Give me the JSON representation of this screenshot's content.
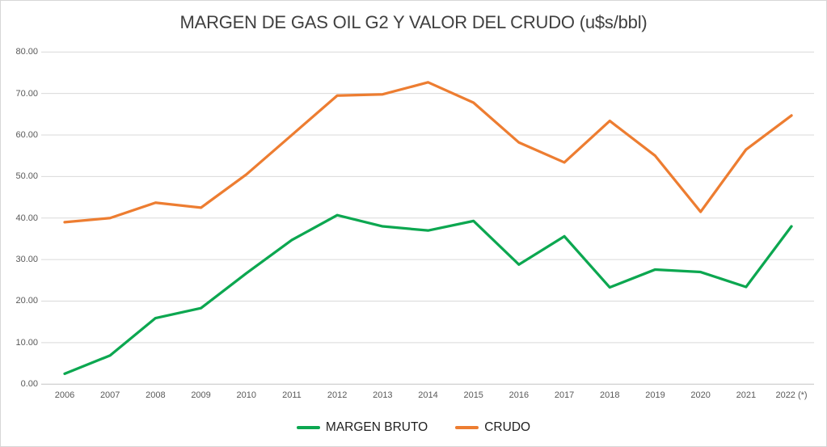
{
  "chart_data": {
    "type": "line",
    "title": "MARGEN DE GAS OIL G2 Y VALOR DEL CRUDO (u$s/bbl)",
    "categories": [
      "2006",
      "2007",
      "2008",
      "2009",
      "2010",
      "2011",
      "2012",
      "2013",
      "2014",
      "2015",
      "2016",
      "2017",
      "2018",
      "2019",
      "2020",
      "2021",
      "2022 (*)"
    ],
    "series": [
      {
        "name": "MARGEN BRUTO",
        "color": "#0ca750",
        "values": [
          2.5,
          6.9,
          15.9,
          18.3,
          26.7,
          34.7,
          40.7,
          38.0,
          37.0,
          39.3,
          28.8,
          35.6,
          23.3,
          27.6,
          27.0,
          23.4,
          38.0
        ]
      },
      {
        "name": "CRUDO",
        "color": "#ed7d31",
        "values": [
          39.0,
          40.0,
          43.7,
          42.5,
          50.5,
          60.0,
          69.5,
          69.8,
          72.7,
          67.8,
          58.2,
          53.4,
          63.4,
          55.0,
          41.5,
          56.5,
          64.7
        ]
      }
    ],
    "xlabel": "",
    "ylabel": "",
    "ylim": [
      0,
      80
    ],
    "ytick_step": 10,
    "ytick_labels": [
      "0.00",
      "10.00",
      "20.00",
      "30.00",
      "40.00",
      "50.00",
      "60.00",
      "70.00",
      "80.00"
    ],
    "grid": true,
    "legend_position": "bottom",
    "colors": {
      "background": "#ffffff",
      "gridline": "#d9d9d9",
      "axis_line": "#c3c3c3",
      "axis_text": "#595959",
      "title_text": "#404040",
      "legend_text": "#1f1f1f"
    }
  }
}
